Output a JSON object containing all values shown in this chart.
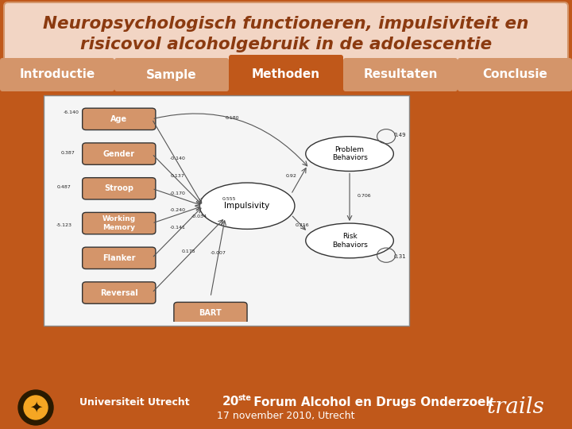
{
  "title_line1": "Neuropsychologisch functioneren, impulsiviteit en",
  "title_line2": "risicovol alcoholgebruik in de adolescentie",
  "title_text_color": "#8B3A10",
  "title_bg_color": "#F2D5C4",
  "title_border_color": "#D4956A",
  "nav_tabs": [
    "Introductie",
    "Sample",
    "Methoden",
    "Resultaten",
    "Conclusie"
  ],
  "nav_active_index": 2,
  "nav_active_color": "#C0581A",
  "nav_inactive_color": "#D4956A",
  "nav_text_color": "#FFFFFF",
  "nav_inactive_text_color": "#FFFFFF",
  "nav_bar_bg": "#C0581A",
  "main_bg_color": "#C0581A",
  "footer_bg_color": "#C0581A",
  "footer_line1": "20",
  "footer_line1_super": "ste",
  "footer_line1_rest": " Forum Alcohol en Drugs Onderzoek",
  "footer_line2": "17 november 2010, Utrecht",
  "footer_text_color": "#FFFFFF",
  "trails_text": "trails",
  "trails_color": "#FFFFFF",
  "background_color": "#C0581A"
}
